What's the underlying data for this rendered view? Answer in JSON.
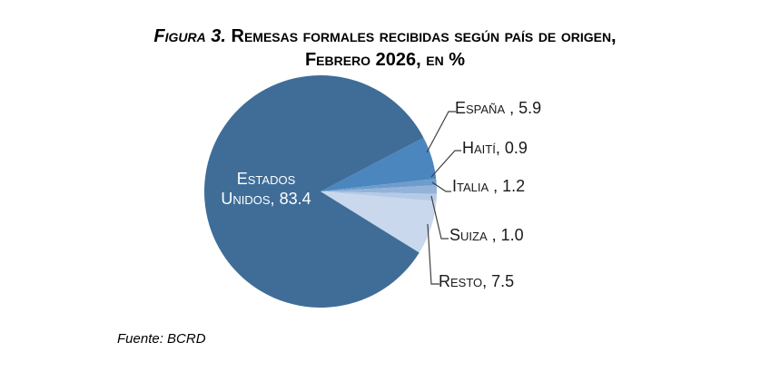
{
  "figure": {
    "title_prefix": "Figura 3.",
    "title_line1_rest": " Remesas formales recibidas según país de origen,",
    "title_line2": "Febrero 2026, en %",
    "source": "Fuente: BCRD"
  },
  "chart_data": {
    "type": "pie",
    "title": "Figura 3. Remesas formales recibidas según país de origen, Febrero 2026, en %",
    "unit": "%",
    "direction": "clockwise",
    "start_angle_deg": 62.4,
    "legend": "none",
    "label_style": "callout-with-leader-lines",
    "slices": [
      {
        "name": "España",
        "value": 5.9,
        "display": "España , 5.9",
        "color": "#4C86BE",
        "label_position": "outside"
      },
      {
        "name": "Haití",
        "value": 0.9,
        "display": "Haití, 0.9",
        "color": "#6E9CCB",
        "label_position": "outside"
      },
      {
        "name": "Italia",
        "value": 1.2,
        "display": "Italia , 1.2",
        "color": "#93B3DB",
        "label_position": "outside"
      },
      {
        "name": "Suiza",
        "value": 1.0,
        "display": "Suiza , 1.0",
        "color": "#B4CAE5",
        "label_position": "outside"
      },
      {
        "name": "Resto",
        "value": 7.5,
        "display": "Resto, 7.5",
        "color": "#C9D8EC",
        "label_position": "outside"
      },
      {
        "name": "Estados Unidos",
        "value": 83.4,
        "display_line1": "Estados",
        "display_line2": "Unidos, 83.4",
        "color": "#3F6D98",
        "label_position": "inside",
        "label_color": "#FFFFFF"
      }
    ],
    "leader_line_color": "#3F3F3F"
  }
}
